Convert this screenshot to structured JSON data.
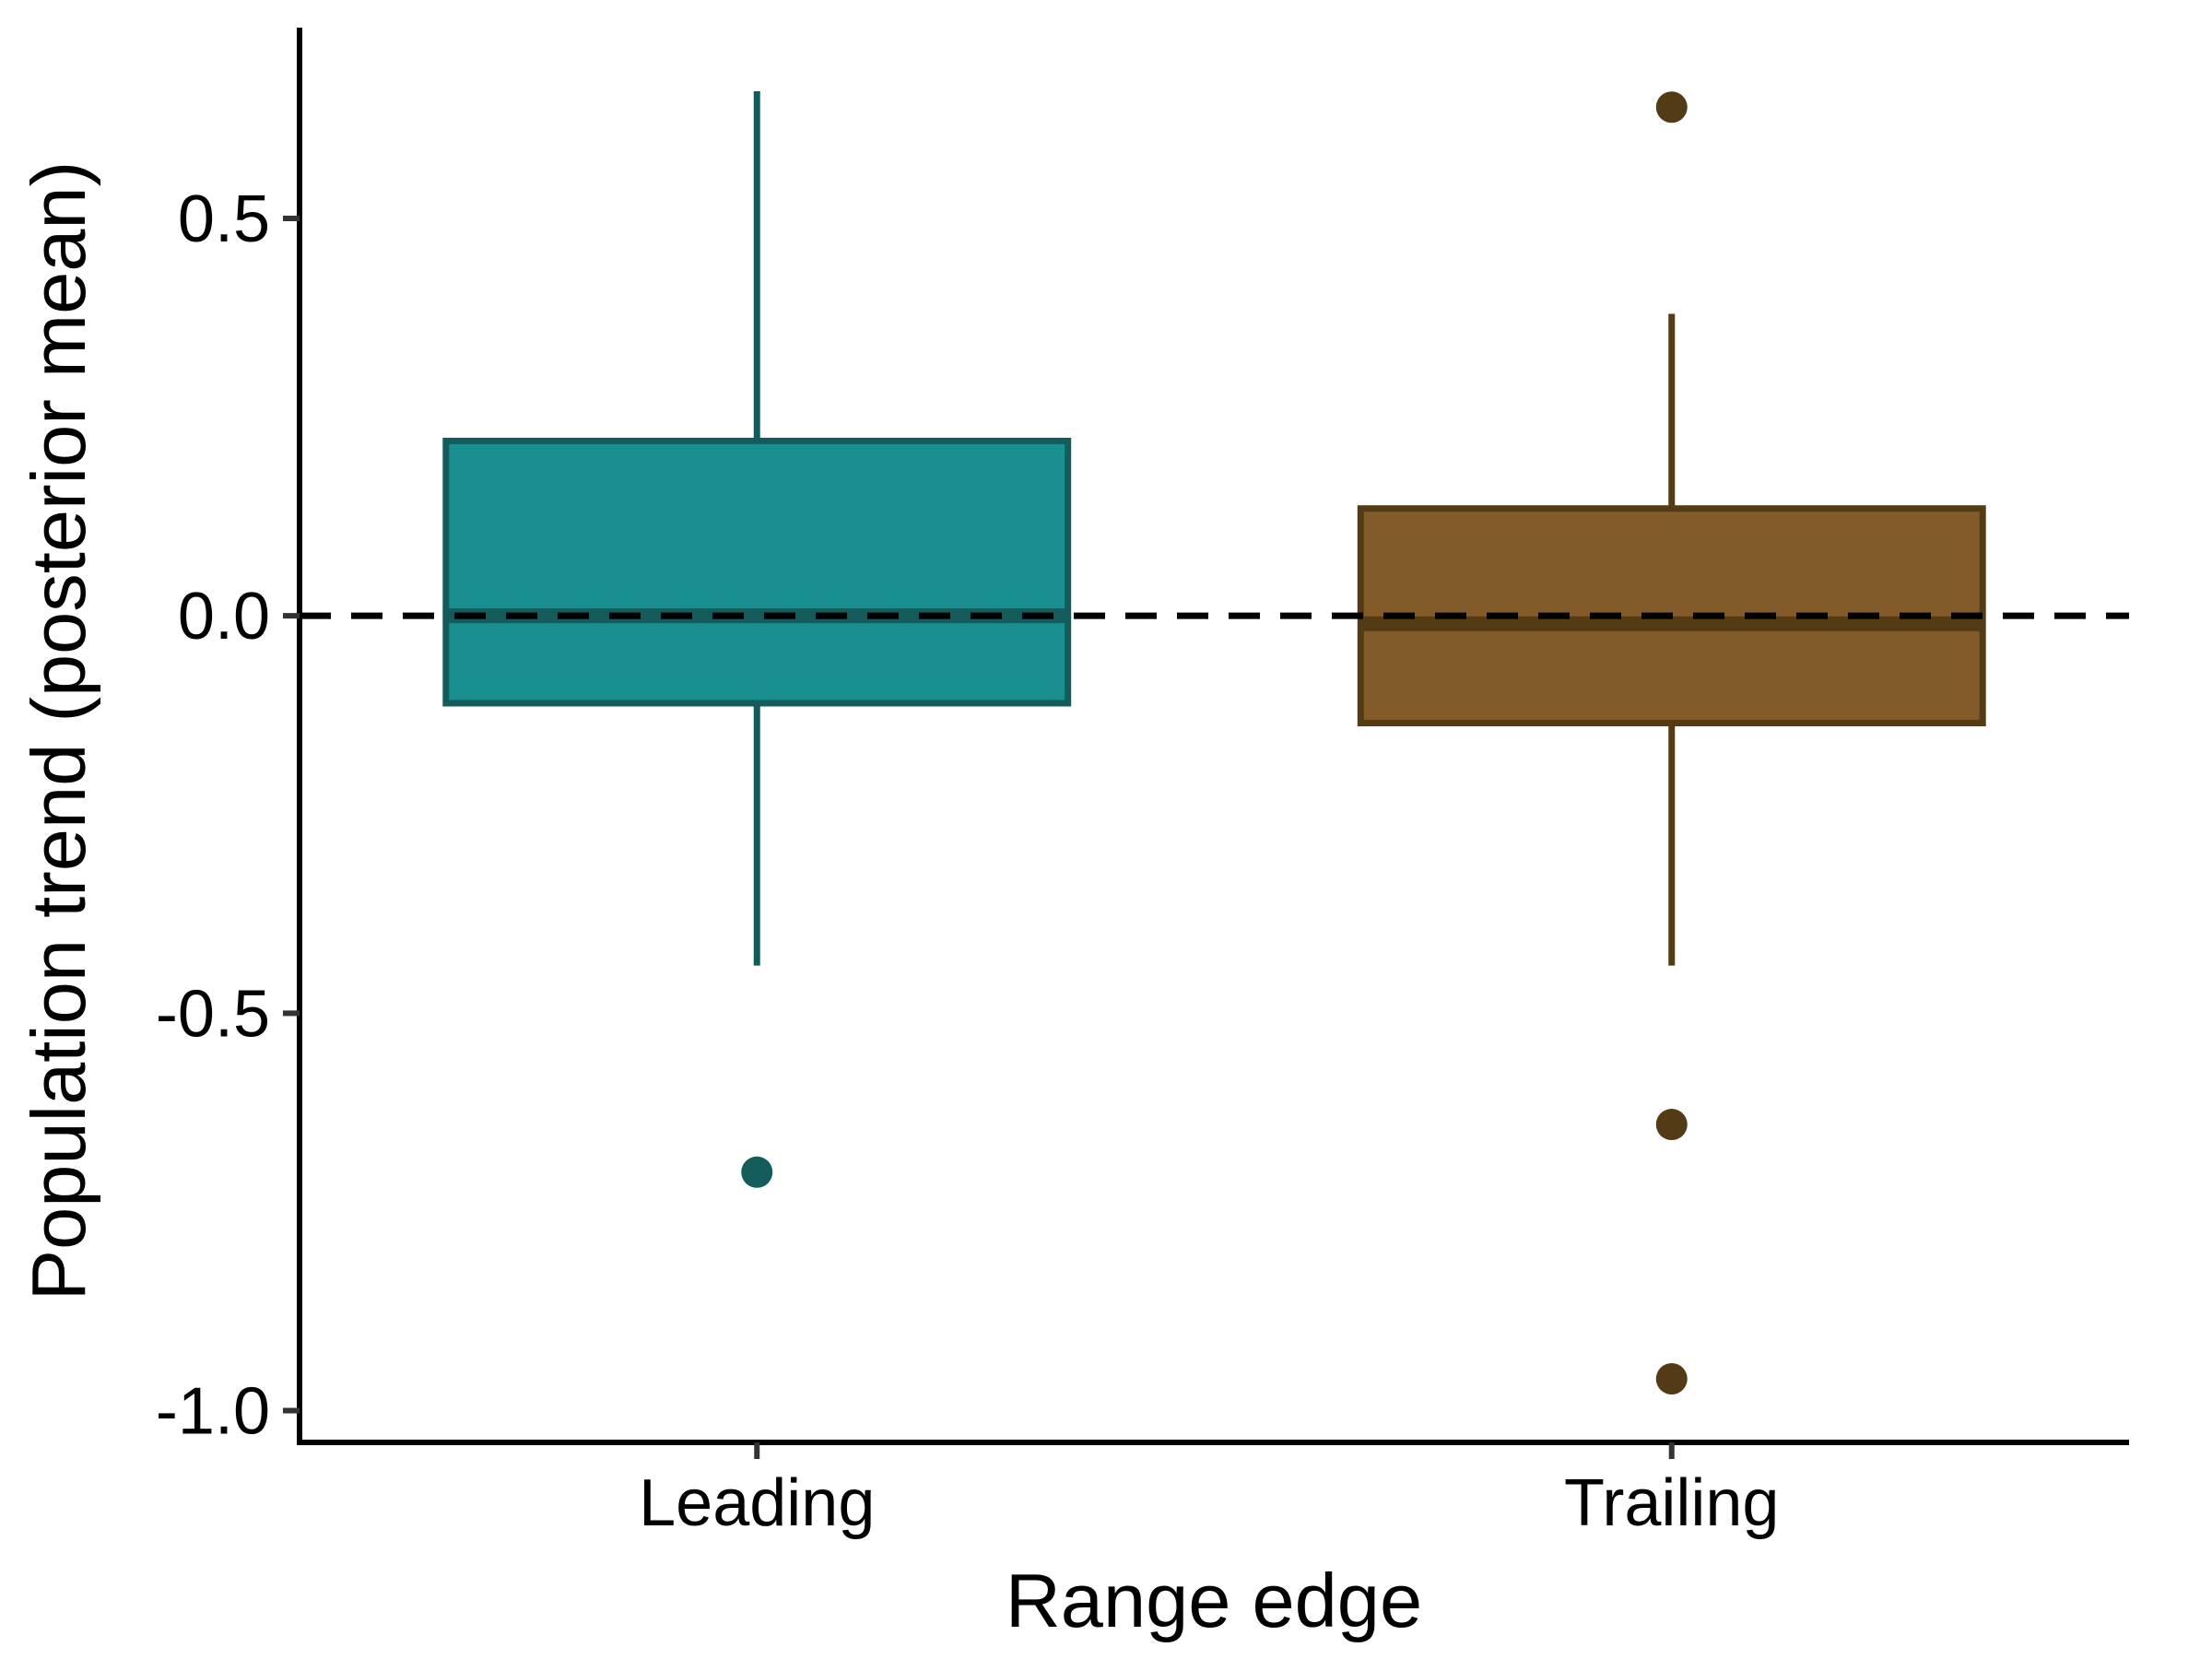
{
  "chart_data": {
    "type": "boxplot",
    "title": "",
    "xlabel": "Range edge",
    "ylabel": "Population trend (posterior mean)",
    "ylim": [
      -1.04,
      0.74
    ],
    "yticks": [
      -1.0,
      -0.5,
      0.0,
      0.5
    ],
    "ytick_labels": [
      "-1.0",
      "-0.5",
      "0.0",
      "0.5"
    ],
    "categories": [
      "Leading",
      "Trailing"
    ],
    "boxes": [
      {
        "category": "Leading",
        "whisker_low": -0.44,
        "q1": -0.11,
        "median": 0.0,
        "q3": 0.22,
        "whisker_high": 0.66,
        "outliers": [
          -0.7
        ],
        "fill": "#198f90",
        "stroke": "#145c5c"
      },
      {
        "category": "Trailing",
        "whisker_low": -0.44,
        "q1": -0.135,
        "median": -0.01,
        "q3": 0.135,
        "whisker_high": 0.38,
        "outliers": [
          0.64,
          -0.64,
          -0.96
        ],
        "fill": "#835b2b",
        "stroke": "#523b15"
      }
    ],
    "reference_line": {
      "y": 0.0,
      "style": "dashed",
      "color": "#000000"
    },
    "grid": false,
    "legend": "none"
  }
}
